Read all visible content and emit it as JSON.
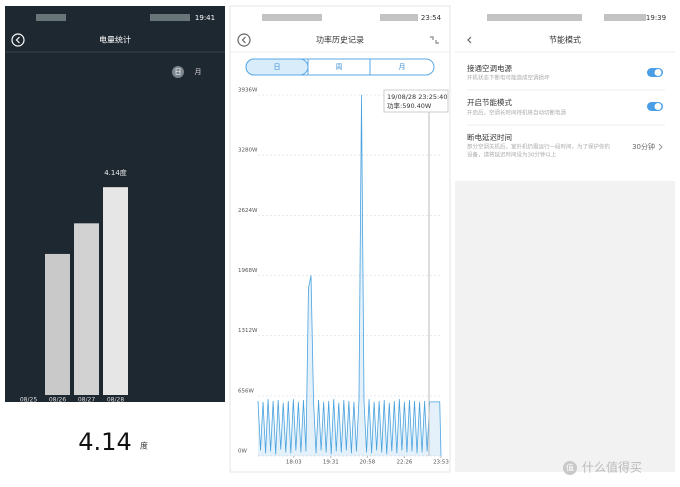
{
  "screens": [
    {
      "status_time": "19:41",
      "title": "电量统计",
      "toggle": [
        "日",
        "月"
      ],
      "total": 4.14,
      "unit": "度"
    },
    {
      "status_time": "23:54",
      "title": "功率历史记录",
      "tabs": [
        "日",
        "周",
        "月"
      ],
      "tooltip": [
        "19/08/28 23:25:40",
        "功率:590.40W"
      ]
    },
    {
      "status_time": "19:39",
      "title": "节能模式",
      "items": [
        {
          "title": "接通空调电源",
          "desc": [
            "开机状态下断电可能造成空调损坏"
          ]
        },
        {
          "title": "开启节能模式",
          "desc": [
            "开启后，空调长时间待机将自动切断电源"
          ]
        },
        {
          "title": "断电延迟时间",
          "desc": [
            "部分空调关机后，室外机仍需运行一段时间，为了保护你的",
            "设备，请将延迟时间设为30分钟以上"
          ],
          "value": "30分钟"
        }
      ]
    }
  ],
  "chart_data": [
    {
      "type": "bar",
      "categories": [
        "08/25",
        "08/26",
        "08/27",
        "08/28"
      ],
      "values": [
        null,
        2.81,
        3.42,
        4.14
      ],
      "value_labels": [
        null,
        null,
        null,
        "4.14度"
      ],
      "colors": [
        "#cfcfcf",
        "#c9c9c9",
        "#d2d2d2",
        "#e6e6e6"
      ],
      "ylim": [
        0,
        5
      ]
    },
    {
      "type": "line",
      "x": [
        998,
        1004,
        1010,
        1016,
        1022,
        1028,
        1034,
        1040,
        1046,
        1052,
        1058,
        1064,
        1070,
        1076,
        1082,
        1088,
        1094,
        1100,
        1106,
        1112,
        1118,
        1124,
        1130,
        1136,
        1142,
        1148,
        1154,
        1160,
        1166,
        1172,
        1178,
        1184,
        1190,
        1196,
        1202,
        1208,
        1214,
        1220,
        1226,
        1232,
        1238,
        1244,
        1250,
        1256,
        1262,
        1268,
        1274,
        1280,
        1286,
        1292,
        1298,
        1304,
        1310,
        1316,
        1322,
        1328,
        1334,
        1340,
        1346,
        1352,
        1358,
        1364,
        1370,
        1376,
        1382,
        1388,
        1394,
        1400,
        1406,
        1412,
        1418,
        1424,
        1430,
        1433
      ],
      "series": [
        {
          "color": "#4aa3df",
          "values": [
            600,
            60,
            590,
            30,
            620,
            50,
            600,
            20,
            610,
            70,
            580,
            40,
            600,
            30,
            620,
            60,
            590,
            40,
            610,
            50,
            1830,
            1968,
            600,
            30,
            610,
            60,
            590,
            40,
            600,
            20,
            620,
            50,
            580,
            40,
            610,
            60,
            600,
            30,
            590,
            50,
            610,
            3936,
            600,
            40,
            620,
            30,
            590,
            60,
            600,
            40,
            610,
            20,
            580,
            50,
            600,
            30,
            620,
            60,
            590,
            40,
            610,
            50,
            600,
            30,
            590,
            40,
            600,
            50,
            590,
            590,
            590,
            590,
            590,
            0
          ]
        }
      ],
      "xlim": [
        998,
        1433
      ],
      "xticks": [
        {
          "value": 1083,
          "label": "18:03"
        },
        {
          "value": 1171,
          "label": "19:31"
        },
        {
          "value": 1258,
          "label": "20:58"
        },
        {
          "value": 1346,
          "label": "22:26"
        },
        {
          "value": 1433,
          "label": "23:53"
        }
      ],
      "ylim": [
        0,
        3936
      ],
      "yticks": [
        {
          "value": 0,
          "label": "0W"
        },
        {
          "value": 656,
          "label": "656W"
        },
        {
          "value": 1312,
          "label": "1312W"
        },
        {
          "value": 1968,
          "label": "1968W"
        },
        {
          "value": 2624,
          "label": "2624W"
        },
        {
          "value": 3280,
          "label": "3280W"
        },
        {
          "value": 3936,
          "label": "3936W"
        }
      ],
      "grid": true
    }
  ],
  "watermark": [
    "值",
    "什么值得买"
  ]
}
